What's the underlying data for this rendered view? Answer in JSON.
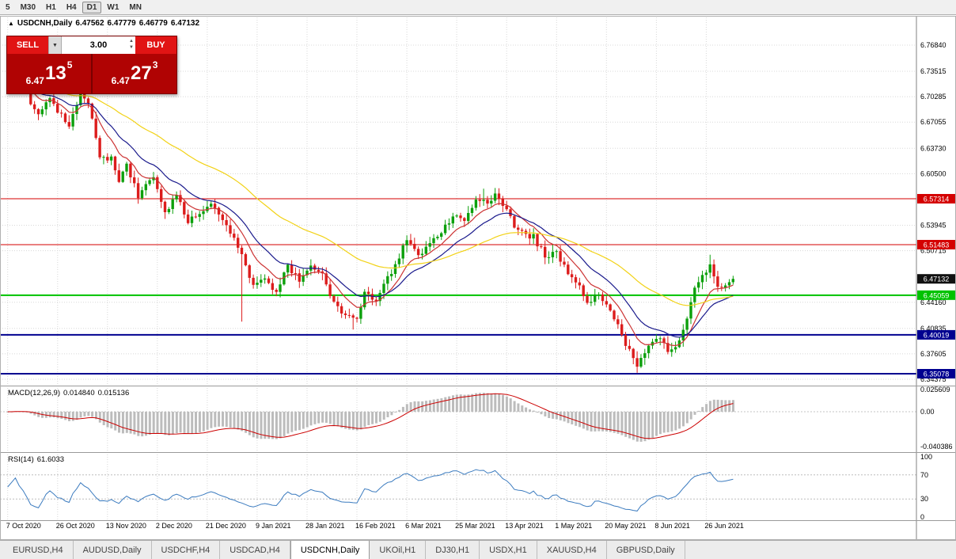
{
  "toolbar": {
    "timeframes": [
      "5",
      "M30",
      "H1",
      "H4",
      "D1",
      "W1",
      "MN"
    ],
    "active": "D1"
  },
  "chart_header": {
    "marker": "▲",
    "symbol": "USDCNH,Daily",
    "open": "6.47562",
    "high": "6.47779",
    "low": "6.46779",
    "close": "6.47132"
  },
  "trade_panel": {
    "sell_label": "SELL",
    "buy_label": "BUY",
    "volume": "3.00",
    "dropdown_caret": "▼",
    "spin_up": "▲",
    "spin_down": "▼",
    "sell_price": {
      "big": "6.47",
      "pips": "13",
      "sup": "5"
    },
    "buy_price": {
      "big": "6.47",
      "pips": "27",
      "sup": "3"
    }
  },
  "macd_panel": {
    "label": "MACD(12,26,9)",
    "value_main": "0.014840",
    "value_signal": "0.015136"
  },
  "rsi_panel": {
    "label": "RSI(14)",
    "value": "61.6033"
  },
  "chart_data": {
    "type": "candlestick",
    "symbol": "USDCNH",
    "timeframe": "Daily",
    "price_axis_labels": [
      "6.76840",
      "6.73515",
      "6.70285",
      "6.67055",
      "6.63730",
      "6.60500",
      "6.53945",
      "6.50715",
      "6.44160",
      "6.40835",
      "6.37605",
      "6.34375"
    ],
    "levels": [
      {
        "label": "6.57314",
        "value": 6.57314,
        "color": "#d40000",
        "width": 1
      },
      {
        "label": "6.51483",
        "value": 6.51483,
        "color": "#d40000",
        "width": 1
      },
      {
        "label": "6.45059",
        "value": 6.45059,
        "color": "#00c200",
        "width": 2
      },
      {
        "label": "6.40019",
        "value": 6.40019,
        "color": "#000090",
        "width": 2
      },
      {
        "label": "6.35078",
        "value": 6.35078,
        "color": "#000090",
        "width": 2
      }
    ],
    "current_price": {
      "label": "6.47132",
      "value": 6.47132,
      "badge_color": "#111111"
    },
    "candles": {
      "count": 190,
      "up_color": "#0ca00c",
      "down_color": "#dc1c1c",
      "close_waypoints": [
        [
          0,
          6.715
        ],
        [
          3,
          6.722
        ],
        [
          8,
          6.678
        ],
        [
          11,
          6.7
        ],
        [
          16,
          6.663
        ],
        [
          19,
          6.707
        ],
        [
          21,
          6.698
        ],
        [
          24,
          6.622
        ],
        [
          27,
          6.625
        ],
        [
          29,
          6.592
        ],
        [
          31,
          6.618
        ],
        [
          34,
          6.576
        ],
        [
          38,
          6.6
        ],
        [
          41,
          6.556
        ],
        [
          44,
          6.58
        ],
        [
          47,
          6.542
        ],
        [
          50,
          6.556
        ],
        [
          53,
          6.566
        ],
        [
          56,
          6.546
        ],
        [
          59,
          6.52
        ],
        [
          61,
          6.5
        ],
        [
          64,
          6.462
        ],
        [
          66,
          6.472
        ],
        [
          70,
          6.456
        ],
        [
          73,
          6.486
        ],
        [
          76,
          6.47
        ],
        [
          79,
          6.49
        ],
        [
          82,
          6.476
        ],
        [
          85,
          6.44
        ],
        [
          88,
          6.426
        ],
        [
          91,
          6.418
        ],
        [
          93,
          6.455
        ],
        [
          96,
          6.445
        ],
        [
          98,
          6.462
        ],
        [
          100,
          6.48
        ],
        [
          104,
          6.52
        ],
        [
          107,
          6.5
        ],
        [
          110,
          6.52
        ],
        [
          113,
          6.532
        ],
        [
          116,
          6.55
        ],
        [
          119,
          6.545
        ],
        [
          122,
          6.575
        ],
        [
          125,
          6.565
        ],
        [
          127,
          6.58
        ],
        [
          130,
          6.556
        ],
        [
          133,
          6.53
        ],
        [
          137,
          6.525
        ],
        [
          140,
          6.5
        ],
        [
          143,
          6.505
        ],
        [
          146,
          6.48
        ],
        [
          149,
          6.465
        ],
        [
          151,
          6.44
        ],
        [
          154,
          6.455
        ],
        [
          157,
          6.43
        ],
        [
          160,
          6.4
        ],
        [
          162,
          6.38
        ],
        [
          164,
          6.358
        ],
        [
          167,
          6.385
        ],
        [
          170,
          6.396
        ],
        [
          172,
          6.38
        ],
        [
          175,
          6.39
        ],
        [
          177,
          6.42
        ],
        [
          179,
          6.46
        ],
        [
          181,
          6.475
        ],
        [
          183,
          6.49
        ],
        [
          185,
          6.465
        ],
        [
          187,
          6.46
        ],
        [
          189,
          6.47132
        ]
      ],
      "extra_wicks": [
        {
          "i": 61,
          "low": 6.417
        },
        {
          "i": 90,
          "low": 6.407
        },
        {
          "i": 124,
          "high": 6.586
        },
        {
          "i": 164,
          "low": 6.352
        },
        {
          "i": 183,
          "high": 6.502
        }
      ]
    },
    "moving_averages": [
      {
        "period": 9,
        "color": "#cc3333"
      },
      {
        "period": 18,
        "color": "#1a1a8c"
      },
      {
        "period": 50,
        "color": "#f2d216"
      }
    ],
    "macd": {
      "fast": 12,
      "slow": 26,
      "signal": 9,
      "axis": [
        {
          "label": "0.025609",
          "value": 0.025609
        },
        {
          "label": "0.00",
          "value": 0
        },
        {
          "label": "-0.040386",
          "value": -0.040386
        }
      ],
      "histogram_color": "#bcbcbc",
      "signal_color": "#cc0000"
    },
    "rsi": {
      "period": 14,
      "color": "#3b7bbf",
      "axis": [
        {
          "label": "100",
          "value": 100
        },
        {
          "label": "70",
          "value": 70
        },
        {
          "label": "30",
          "value": 30
        },
        {
          "label": "0",
          "value": 0
        }
      ],
      "guide_levels": [
        70,
        30
      ]
    },
    "date_labels": [
      "7 Oct 2020",
      "26 Oct 2020",
      "13 Nov 2020",
      "2 Dec 2020",
      "21 Dec 2020",
      "9 Jan 2021",
      "28 Jan 2021",
      "16 Feb 2021",
      "6 Mar 2021",
      "25 Mar 2021",
      "13 Apr 2021",
      "1 May 2021",
      "20 May 2021",
      "8 Jun 2021",
      "26 Jun 2021"
    ]
  },
  "tabs": {
    "items": [
      "EURUSD,H4",
      "AUDUSD,Daily",
      "USDCHF,H4",
      "USDCAD,H4",
      "USDCNH,Daily",
      "UKOil,H1",
      "DJ30,H1",
      "USDX,H1",
      "XAUUSD,H4",
      "GBPUSD,Daily"
    ],
    "active": "USDCNH,Daily"
  }
}
